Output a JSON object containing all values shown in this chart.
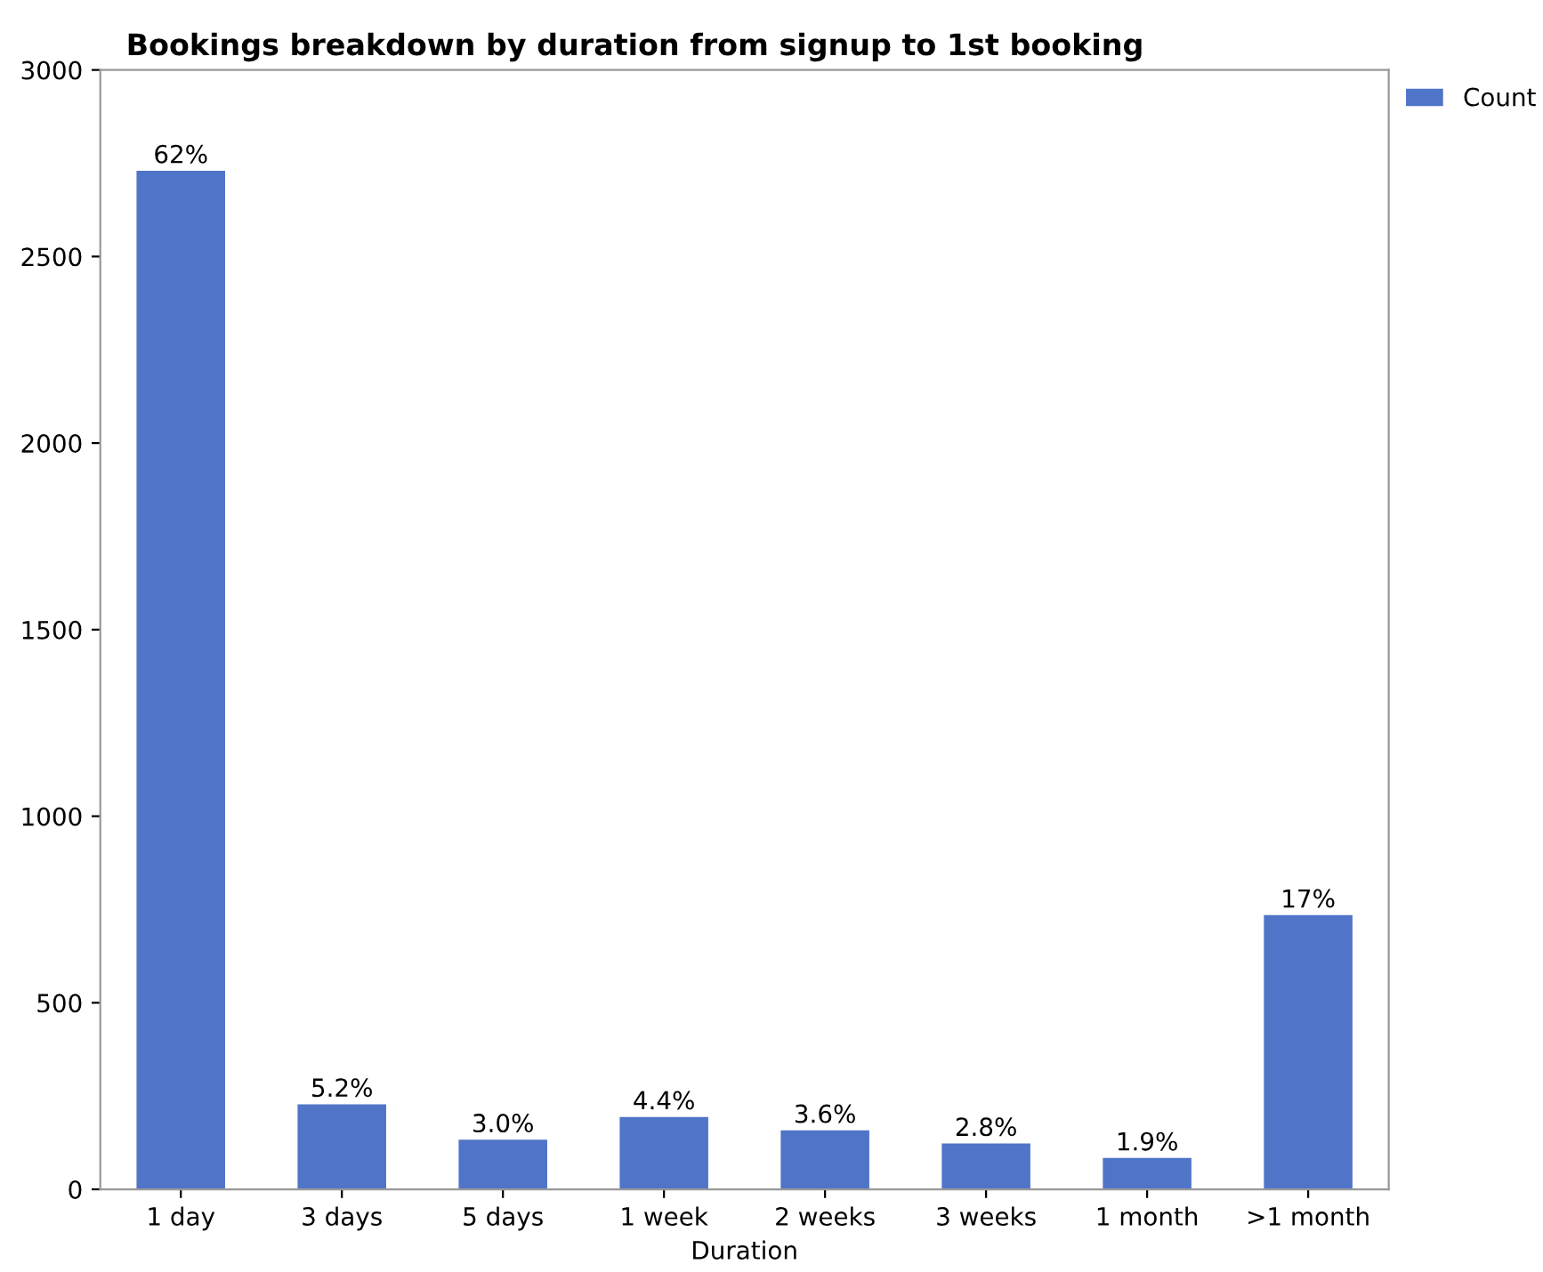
{
  "chart_data": {
    "type": "bar",
    "title": "Bookings breakdown by duration from signup to 1st booking",
    "xlabel": "Duration",
    "categories": [
      "1 day",
      "3 days",
      "5 days",
      "1 week",
      "2 weeks",
      "3 weeks",
      "1 month",
      ">1 month"
    ],
    "series": [
      {
        "name": "Count",
        "color": "#4f74c8",
        "values": [
          2730,
          228,
          133,
          194,
          158,
          123,
          84,
          735
        ]
      }
    ],
    "value_labels": [
      "62%",
      "5.2%",
      "3.0%",
      "4.4%",
      "3.6%",
      "2.8%",
      "1.9%",
      "17%"
    ],
    "ylim": [
      0,
      3000
    ],
    "yticks": [
      0,
      500,
      1000,
      1500,
      2000,
      2500,
      3000
    ],
    "grid": false,
    "legend": "top right"
  }
}
